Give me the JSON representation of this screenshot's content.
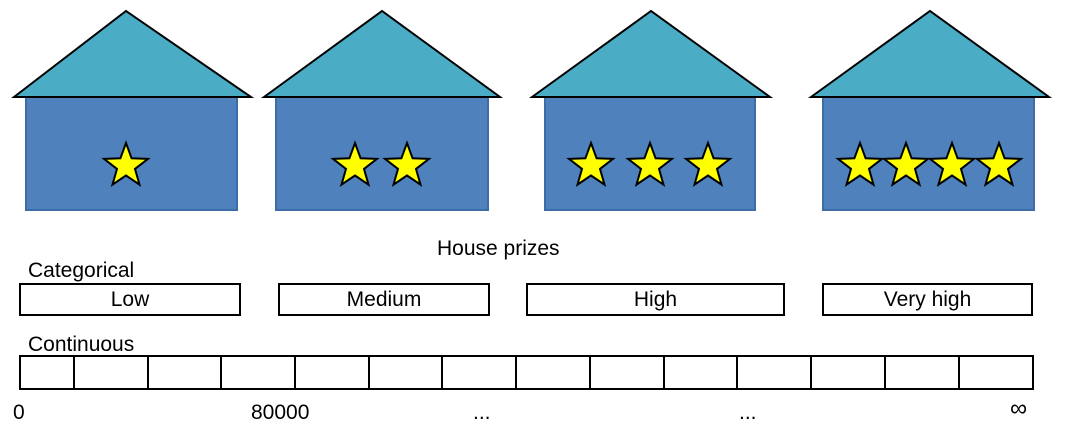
{
  "title": "House prizes",
  "houses": [
    {
      "stars": 1
    },
    {
      "stars": 2
    },
    {
      "stars": 3
    },
    {
      "stars": 4
    }
  ],
  "colors": {
    "roof": "#4bacc6",
    "wall": "#4f81bd",
    "wall_edge": "#3d6da6",
    "star": "#ffff00",
    "outline": "#000000"
  },
  "categorical": {
    "label": "Categorical",
    "categories": [
      "Low",
      "Medium",
      "High",
      "Very high"
    ]
  },
  "continuous": {
    "label": "Continuous",
    "segments": 14,
    "ticks": [
      "0",
      "80000",
      "...",
      "...",
      "∞"
    ]
  }
}
